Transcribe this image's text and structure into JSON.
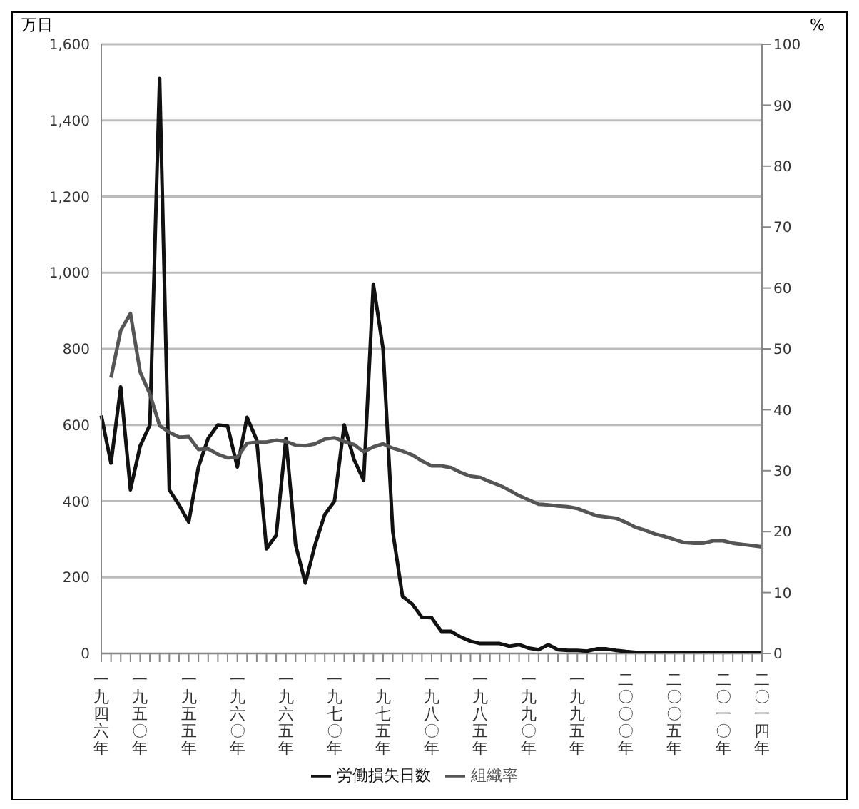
{
  "chart_data": {
    "type": "line",
    "ylabel": "万日",
    "y2label": "%",
    "categories": [
      "一九四六年",
      null,
      null,
      null,
      "一九五〇年",
      null,
      null,
      null,
      null,
      "一九五五年",
      null,
      null,
      null,
      null,
      "一九六〇年",
      null,
      null,
      null,
      null,
      "一九六五年",
      null,
      null,
      null,
      null,
      "一九七〇年",
      null,
      null,
      null,
      null,
      "一九七五年",
      null,
      null,
      null,
      null,
      "一九八〇年",
      null,
      null,
      null,
      null,
      "一九八五年",
      null,
      null,
      null,
      null,
      "一九九〇年",
      null,
      null,
      null,
      null,
      "一九九五年",
      null,
      null,
      null,
      null,
      "二〇〇〇年",
      null,
      null,
      null,
      null,
      "二〇〇五年",
      null,
      null,
      null,
      null,
      "二〇一〇年",
      null,
      null,
      null,
      "二〇一四年"
    ],
    "series": [
      {
        "name": "労働損失日数",
        "color": "#111111",
        "values": [
          625,
          500,
          700,
          430,
          545,
          600,
          1510,
          430,
          390,
          345,
          490,
          565,
          600,
          597,
          490,
          620,
          560,
          275,
          310,
          565,
          285,
          185,
          285,
          365,
          400,
          600,
          510,
          455,
          970,
          800,
          320,
          150,
          130,
          95,
          94,
          58,
          58,
          43,
          32,
          26,
          26,
          26,
          19,
          23,
          14,
          10,
          23,
          10,
          8,
          8,
          6,
          12,
          12,
          8,
          5,
          3,
          2,
          1,
          1,
          1,
          1,
          1,
          2,
          1,
          3,
          1,
          1,
          1,
          1
        ]
      },
      {
        "name": "組織率",
        "color": "#555555",
        "axis": "y2",
        "values": [
          null,
          45.3,
          53.0,
          55.8,
          46.2,
          42.6,
          37.4,
          36.3,
          35.5,
          35.6,
          33.5,
          33.6,
          32.7,
          32.1,
          32.2,
          34.5,
          34.7,
          34.7,
          35.0,
          34.8,
          34.2,
          34.1,
          34.4,
          35.2,
          35.4,
          34.8,
          34.3,
          33.1,
          33.9,
          34.4,
          33.7,
          33.2,
          32.6,
          31.6,
          30.8,
          30.8,
          30.5,
          29.7,
          29.1,
          28.9,
          28.2,
          27.6,
          26.8,
          25.9,
          25.2,
          24.5,
          24.4,
          24.2,
          24.1,
          23.8,
          23.2,
          22.6,
          22.4,
          22.2,
          21.5,
          20.7,
          20.2,
          19.6,
          19.2,
          18.7,
          18.2,
          18.1,
          18.1,
          18.5,
          18.5,
          18.1,
          17.9,
          17.7,
          17.5
        ]
      }
    ],
    "ylim": [
      0,
      1600
    ],
    "yticks": [
      0,
      200,
      400,
      600,
      800,
      {
        "value": 1000,
        "label": "1,000"
      },
      {
        "value": 1200,
        "label": "1,200"
      },
      {
        "value": 1400,
        "label": "1,400"
      },
      {
        "value": 1600,
        "label": "1,600"
      }
    ],
    "y2lim": [
      0,
      100
    ],
    "y2ticks": [
      0,
      10,
      20,
      30,
      40,
      50,
      60,
      70,
      80,
      90,
      100
    ],
    "grid": "y",
    "legend": "bottom",
    "line_style": "solid"
  }
}
